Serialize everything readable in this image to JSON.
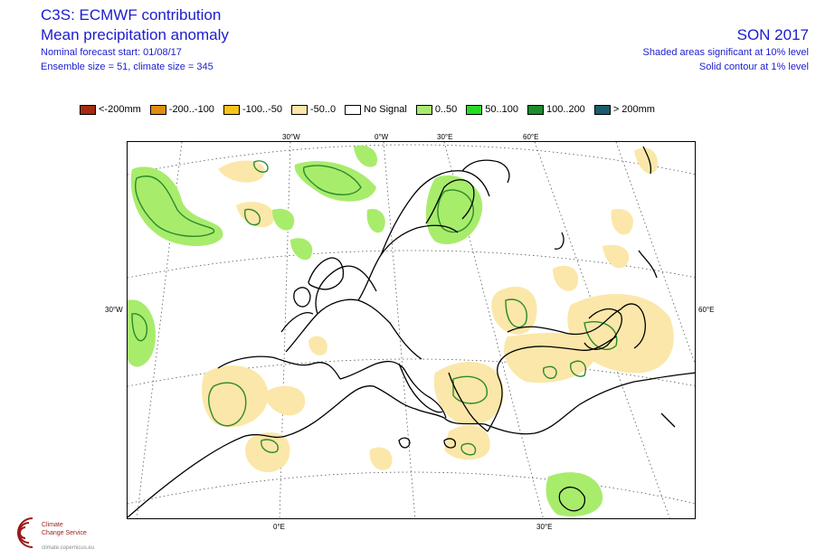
{
  "header": {
    "title": "C3S: ECMWF contribution",
    "subtitle": "Mean precipitation anomaly",
    "forecast_start": "Nominal forecast start: 01/08/17",
    "ensemble": "Ensemble size = 51, climate size = 345",
    "season": "SON 2017",
    "note_shaded": "Shaded areas significant at 10% level",
    "note_contour": "Solid contour at 1% level"
  },
  "legend": [
    {
      "label": "<-200mm",
      "color": "#a62a10"
    },
    {
      "label": "-200..-100",
      "color": "#e08c10"
    },
    {
      "label": "-100..-50",
      "color": "#f7c51a"
    },
    {
      "label": "-50..0",
      "color": "#fbe7a9"
    },
    {
      "label": "No Signal",
      "color": "#ffffff"
    },
    {
      "label": "0..50",
      "color": "#a8ec6c"
    },
    {
      "label": "50..100",
      "color": "#25dc25"
    },
    {
      "label": "100..200",
      "color": "#1c8c2c"
    },
    {
      "label": "> 200mm",
      "color": "#1a5c6c"
    }
  ],
  "map": {
    "top_labels": [
      "30°W",
      "0°W",
      "30°E",
      "60°E"
    ],
    "left_label": "30°W",
    "right_label": "60°E",
    "bottom_labels": [
      "0°E",
      "30°E"
    ],
    "colors": {
      "dry": "#fbe7a9",
      "wet": "#a8ec6c",
      "contour": "#2a8a2a",
      "coast": "#000000",
      "grid": "#555555"
    }
  },
  "logo": {
    "line1": "Climate",
    "line2": "Change Service",
    "sub": "climate.copernicus.eu"
  }
}
